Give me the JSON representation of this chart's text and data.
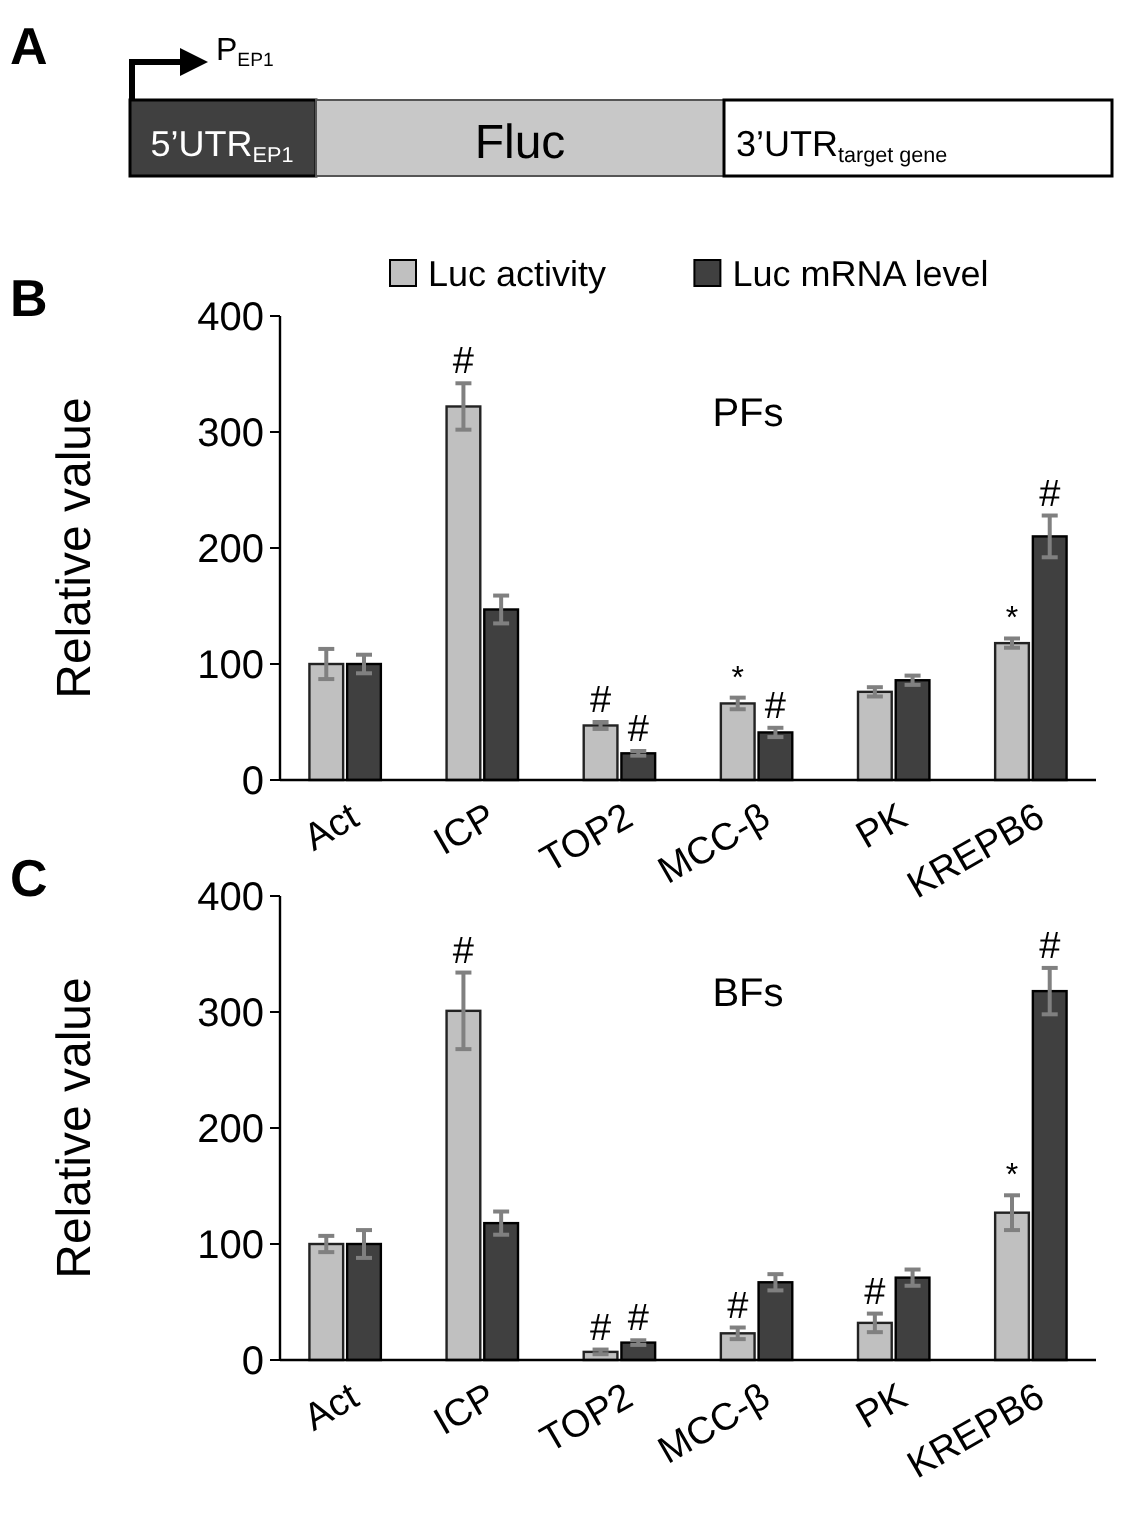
{
  "chart_data": [
    {
      "type": "other",
      "annotations": [
        "A",
        "P$_{EP1}$",
        "5’UTR$_{EP1}$",
        "Fluc",
        "3’UTR$_{target gene}$"
      ]
    },
    {
      "type": "bar",
      "title": "PFs",
      "ylabel": "Relative value",
      "categories": [
        "Act",
        "ICP",
        "TOP2",
        "MCC-β",
        "PK",
        "KREPB6"
      ],
      "ylim": [
        0,
        400
      ],
      "yticks": [
        0,
        100,
        200,
        300,
        400
      ],
      "legend": "top right",
      "series": [
        {
          "name": "Luc activity",
          "color": "#c0c0c0",
          "values": [
            100,
            322,
            47,
            66,
            76,
            118
          ],
          "errors": [
            13,
            20,
            3,
            5,
            4,
            4
          ]
        },
        {
          "name": "Luc mRNA level",
          "color": "#404040",
          "values": [
            100,
            147,
            23,
            41,
            86,
            210
          ],
          "errors": [
            8,
            12,
            2,
            4,
            4,
            18
          ]
        }
      ],
      "annotations": [
        "B",
        {
          "text": "#",
          "x": "ICP",
          "y": 322
        },
        {
          "text": "#",
          "x": "TOP2",
          "y": 47
        },
        {
          "text": "#",
          "x": "TOP2",
          "y": 23
        },
        {
          "text": "*",
          "x": "MCC-β",
          "y": 66
        },
        {
          "text": "#",
          "x": "MCC-β",
          "y": 41
        },
        {
          "text": "*",
          "x": "KREPB6",
          "y": 118
        },
        "#"
      ]
    },
    {
      "type": "bar",
      "title": "BFs",
      "ylabel": "Relative value",
      "categories": [
        "Act",
        "ICP",
        "TOP2",
        "MCC-β",
        "PK",
        "KREPB6"
      ],
      "ylim": [
        0,
        400
      ],
      "yticks": [
        0,
        100,
        200,
        300,
        400
      ],
      "legend": false,
      "series": [
        {
          "color": "#c0c0c0",
          "values": [
            100,
            301,
            7,
            23,
            32,
            127
          ],
          "errors": [
            7,
            33,
            2,
            5,
            8,
            15
          ]
        },
        {
          "color": "#404040",
          "values": [
            100,
            118,
            15,
            67,
            71,
            318
          ],
          "errors": [
            12,
            10,
            2,
            7,
            7,
            20
          ]
        }
      ],
      "annotations": [
        "C",
        {
          "text": "#",
          "x": "ICP",
          "y": 301
        },
        {
          "text": "#",
          "x": "TOP2",
          "y": 7
        },
        {
          "text": "#",
          "x": "TOP2",
          "y": 15
        },
        {
          "text": "#",
          "x": "MCC-β",
          "y": 23
        },
        {
          "text": "#",
          "x": "PK",
          "y": 32
        },
        {
          "text": "*",
          "x": "KREPB6",
          "y": 127
        },
        "#"
      ]
    }
  ]
}
